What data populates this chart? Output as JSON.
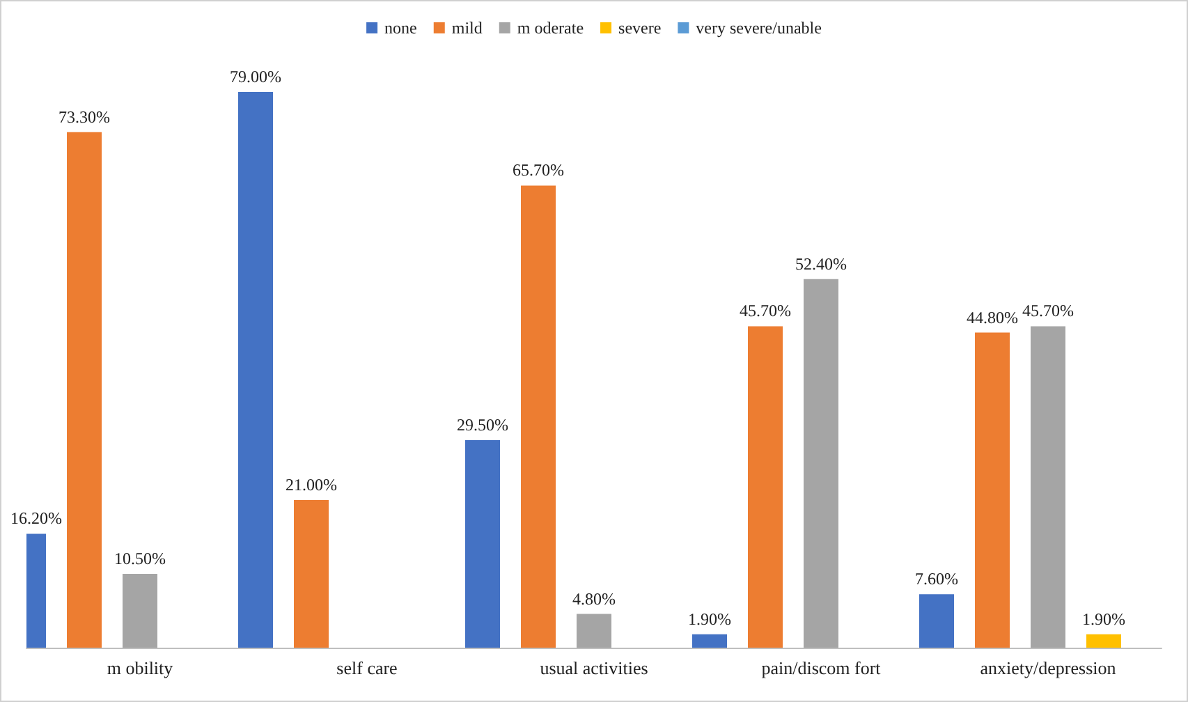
{
  "chart_data": {
    "type": "bar",
    "categories": [
      "m obility",
      "self care",
      "usual activities",
      "pain/discom fort",
      "anxiety/depression"
    ],
    "series": [
      {
        "name": "none",
        "color": "#4472c4",
        "values": [
          16.2,
          79.0,
          29.5,
          1.9,
          7.6
        ],
        "value_labels": [
          "16.20%",
          "79.00%",
          "29.50%",
          "1.90%",
          "7.60%"
        ]
      },
      {
        "name": "mild",
        "color": "#ed7d31",
        "values": [
          73.3,
          21.0,
          65.7,
          45.7,
          44.8
        ],
        "value_labels": [
          "73.30%",
          "21.00%",
          "65.70%",
          "45.70%",
          "44.80%"
        ]
      },
      {
        "name": "m oderate",
        "color": "#a5a5a5",
        "values": [
          10.5,
          null,
          4.8,
          52.4,
          45.7
        ],
        "value_labels": [
          "10.50%",
          null,
          "4.80%",
          "52.40%",
          "45.70%"
        ]
      },
      {
        "name": "severe",
        "color": "#ffc000",
        "values": [
          null,
          null,
          null,
          null,
          1.9
        ],
        "value_labels": [
          null,
          null,
          null,
          null,
          "1.90%"
        ]
      },
      {
        "name": "very severe/unable",
        "color": "#5b9bd5",
        "values": [
          null,
          null,
          null,
          null,
          null
        ],
        "value_labels": [
          null,
          null,
          null,
          null,
          null
        ]
      }
    ],
    "legend": "top"
  }
}
